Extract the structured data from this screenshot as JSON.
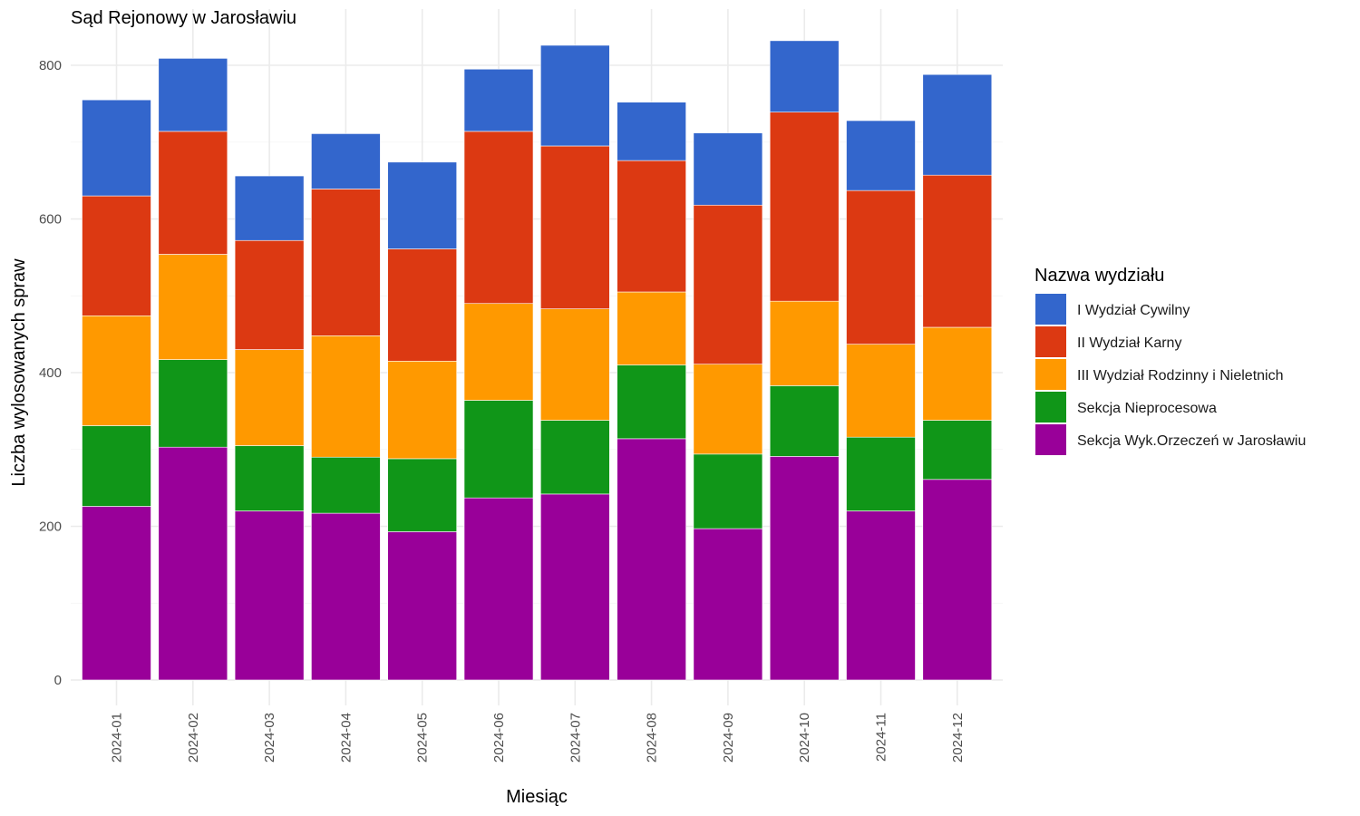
{
  "chart_data": {
    "type": "bar",
    "stacked": true,
    "title": "Sąd Rejonowy w Jarosławiu",
    "xlabel": "Miesiąc",
    "ylabel": "Liczba wylosowanych spraw",
    "ylim": [
      0,
      880
    ],
    "yticks": [
      0,
      200,
      400,
      600,
      800
    ],
    "grid": true,
    "legend_title": "Nazwa wydziału",
    "legend_position": "right",
    "categories": [
      "2024-01",
      "2024-02",
      "2024-03",
      "2024-04",
      "2024-05",
      "2024-06",
      "2024-07",
      "2024-08",
      "2024-09",
      "2024-10",
      "2024-11",
      "2024-12"
    ],
    "series": [
      {
        "name": "Sekcja Wyk.Orzeczeń w Jarosławiu",
        "color": "#990099",
        "values": [
          226,
          303,
          220,
          217,
          193,
          237,
          242,
          314,
          197,
          291,
          220,
          261
        ]
      },
      {
        "name": "Sekcja Nieprocesowa",
        "color": "#109618",
        "values": [
          105,
          114,
          85,
          73,
          95,
          127,
          96,
          96,
          97,
          92,
          96,
          77
        ]
      },
      {
        "name": "III Wydział Rodzinny i Nieletnich",
        "color": "#ff9900",
        "values": [
          143,
          137,
          125,
          158,
          127,
          126,
          145,
          95,
          117,
          110,
          121,
          121
        ]
      },
      {
        "name": "II Wydział Karny",
        "color": "#dc3912",
        "values": [
          156,
          160,
          142,
          191,
          146,
          224,
          212,
          171,
          207,
          246,
          200,
          198
        ]
      },
      {
        "name": "I Wydział Cywilny",
        "color": "#3366cc",
        "values": [
          125,
          95,
          84,
          72,
          113,
          81,
          131,
          76,
          94,
          93,
          91,
          131
        ]
      }
    ],
    "legend_order": [
      "I Wydział Cywilny",
      "II Wydział Karny",
      "III Wydział Rodzinny i Nieletnich",
      "Sekcja Nieprocesowa",
      "Sekcja Wyk.Orzeczeń w Jarosławiu"
    ]
  }
}
